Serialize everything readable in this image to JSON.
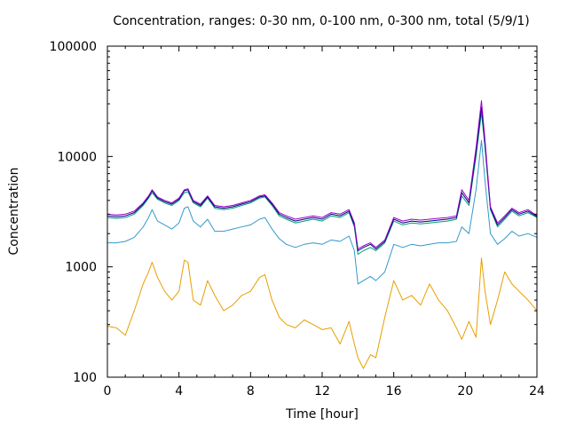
{
  "chart_data": {
    "type": "line",
    "title": "Concentration, ranges: 0-30 nm, 0-100 nm, 0-300 nm, total (5/9/1)",
    "xlabel": "Time [hour]",
    "ylabel": "Concentration",
    "xlim": [
      0,
      24
    ],
    "ylim": [
      100,
      100000
    ],
    "yscale": "log",
    "x_ticks": [
      0,
      4,
      8,
      12,
      16,
      20,
      24
    ],
    "x_tick_labels": [
      "0",
      "4",
      "8",
      "12",
      "16",
      "20",
      "24"
    ],
    "y_ticks": [
      100,
      1000,
      10000,
      100000
    ],
    "y_tick_labels": [
      "100",
      "1000",
      "10000",
      "100000"
    ],
    "grid": false,
    "legend": "none",
    "x": [
      0,
      0.5,
      1,
      1.5,
      2,
      2.3,
      2.5,
      2.8,
      3.2,
      3.6,
      4,
      4.3,
      4.5,
      4.8,
      5.2,
      5.6,
      6,
      6.5,
      7,
      7.5,
      8,
      8.5,
      8.8,
      9.2,
      9.6,
      10,
      10.5,
      11,
      11.5,
      12,
      12.5,
      13,
      13.5,
      13.8,
      14,
      14.3,
      14.7,
      15,
      15.5,
      16,
      16.5,
      17,
      17.5,
      18,
      18.5,
      19,
      19.5,
      19.8,
      20.2,
      20.6,
      20.9,
      21.1,
      21.4,
      21.8,
      22.2,
      22.6,
      23,
      23.5,
      24
    ],
    "series": [
      {
        "color": "#9900cc",
        "values": [
          3000,
          2950,
          3000,
          3200,
          3800,
          4400,
          5000,
          4300,
          4000,
          3800,
          4200,
          5000,
          5100,
          4000,
          3700,
          4400,
          3600,
          3500,
          3600,
          3800,
          4000,
          4400,
          4500,
          3800,
          3100,
          2900,
          2700,
          2800,
          2900,
          2800,
          3100,
          3000,
          3300,
          2500,
          1450,
          1550,
          1650,
          1500,
          1750,
          2800,
          2600,
          2700,
          2650,
          2700,
          2750,
          2800,
          2900,
          5000,
          4000,
          12000,
          32000,
          14000,
          3500,
          2500,
          2900,
          3400,
          3100,
          3300,
          2900
        ]
      },
      {
        "color": "#000080",
        "values": [
          2900,
          2850,
          2900,
          3100,
          3700,
          4300,
          4900,
          4200,
          3900,
          3700,
          4100,
          4900,
          5000,
          3900,
          3600,
          4300,
          3500,
          3400,
          3500,
          3700,
          3900,
          4300,
          4400,
          3700,
          3000,
          2800,
          2600,
          2700,
          2800,
          2700,
          3000,
          2900,
          3200,
          2400,
          1400,
          1500,
          1600,
          1450,
          1700,
          2700,
          2500,
          2600,
          2550,
          2600,
          2650,
          2700,
          2800,
          4700,
          3800,
          11000,
          28000,
          13000,
          3400,
          2400,
          2800,
          3300,
          3000,
          3200,
          2850
        ]
      },
      {
        "color": "#009e73",
        "values": [
          2800,
          2750,
          2800,
          3000,
          3600,
          4200,
          4700,
          4100,
          3800,
          3600,
          4000,
          4700,
          4800,
          3800,
          3500,
          4200,
          3400,
          3300,
          3400,
          3600,
          3800,
          4200,
          4300,
          3600,
          2900,
          2700,
          2500,
          2600,
          2700,
          2600,
          2900,
          2800,
          3100,
          2300,
          1300,
          1400,
          1500,
          1400,
          1650,
          2600,
          2400,
          2500,
          2450,
          2500,
          2550,
          2600,
          2700,
          4400,
          3600,
          10000,
          25000,
          12000,
          3300,
          2300,
          2700,
          3200,
          2900,
          3100,
          2800
        ]
      },
      {
        "color": "#3399cc",
        "values": [
          1650,
          1650,
          1700,
          1850,
          2300,
          2800,
          3300,
          2600,
          2400,
          2200,
          2500,
          3400,
          3500,
          2600,
          2300,
          2700,
          2100,
          2100,
          2200,
          2300,
          2400,
          2700,
          2800,
          2200,
          1800,
          1600,
          1500,
          1600,
          1650,
          1600,
          1750,
          1700,
          1900,
          1400,
          700,
          750,
          820,
          750,
          900,
          1600,
          1500,
          1600,
          1550,
          1600,
          1650,
          1650,
          1700,
          2300,
          2000,
          5000,
          14000,
          6000,
          2000,
          1600,
          1800,
          2100,
          1900,
          2000,
          1850
        ]
      },
      {
        "color": "#e69f00",
        "values": [
          290,
          280,
          240,
          400,
          700,
          900,
          1100,
          800,
          600,
          500,
          600,
          1150,
          1100,
          500,
          450,
          750,
          550,
          400,
          450,
          550,
          600,
          800,
          850,
          500,
          350,
          300,
          280,
          330,
          300,
          270,
          280,
          200,
          320,
          200,
          150,
          120,
          160,
          150,
          350,
          750,
          500,
          550,
          450,
          700,
          500,
          400,
          280,
          220,
          320,
          230,
          1200,
          600,
          300,
          500,
          900,
          700,
          600,
          500,
          400
        ]
      }
    ]
  }
}
